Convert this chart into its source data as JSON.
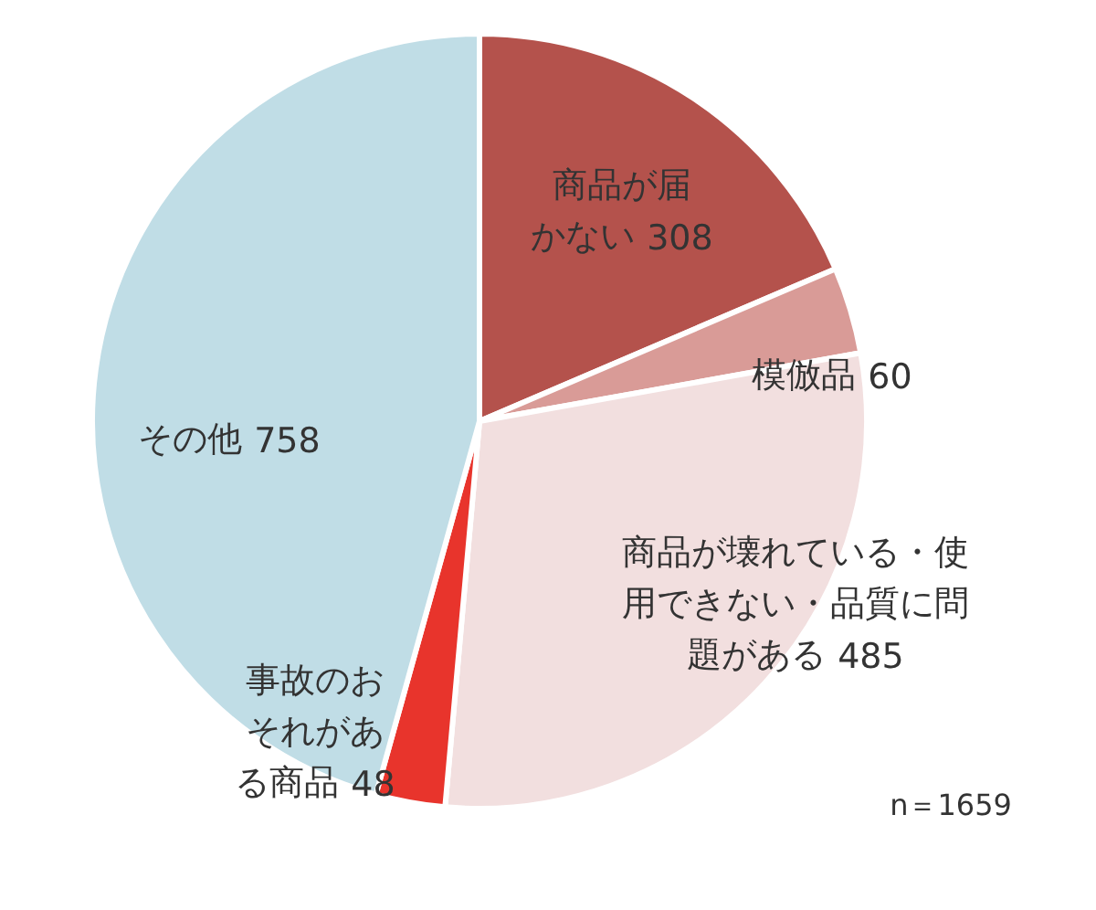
{
  "chart_data": {
    "type": "pie",
    "categories": [
      "商品が届かない",
      "模倣品",
      "商品が壊れている・使用できない・品質に問題がある",
      "事故のおそれがある商品",
      "その他"
    ],
    "values": [
      308,
      60,
      485,
      48,
      758
    ],
    "colors": [
      "#b4524c",
      "#d99b97",
      "#f2dfdf",
      "#e8342c",
      "#c0dde6"
    ],
    "data_labels": true,
    "annotations": [
      "n＝1659"
    ]
  }
}
